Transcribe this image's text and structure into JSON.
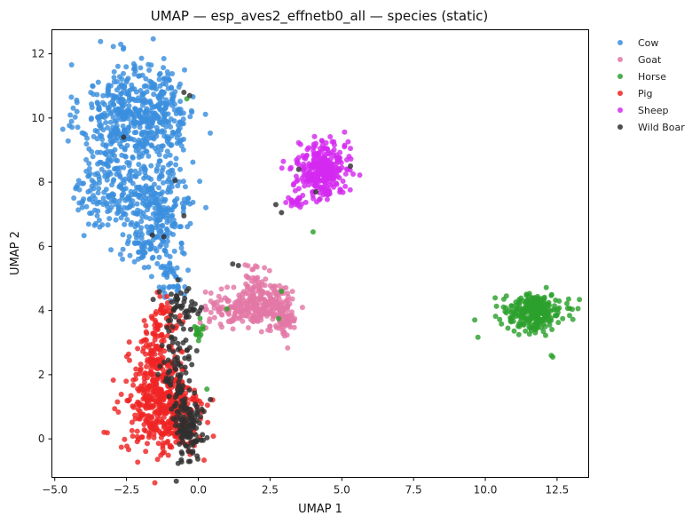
{
  "chart_data": {
    "type": "scatter",
    "title": "UMAP — esp_aves2_effnetb0_all — species (static)",
    "xlabel": "UMAP 1",
    "ylabel": "UMAP 2",
    "xlim": [
      -5.1,
      13.6
    ],
    "ylim": [
      -1.2,
      12.75
    ],
    "xticks": [
      -5.0,
      -2.5,
      0.0,
      2.5,
      5.0,
      7.5,
      10.0,
      12.5
    ],
    "xtick_labels": [
      "−5.0",
      "−2.5",
      "0.0",
      "2.5",
      "5.0",
      "7.5",
      "10.0",
      "12.5"
    ],
    "yticks": [
      0,
      2,
      4,
      6,
      8,
      10,
      12
    ],
    "ytick_labels": [
      "0",
      "2",
      "4",
      "6",
      "8",
      "10",
      "12"
    ],
    "grid": false,
    "legend_position": "outside-right-top",
    "series": [
      {
        "name": "Cow",
        "color": "#3a8fde",
        "clusters": [
          {
            "cx": -2.6,
            "cy": 10.0,
            "sx": 0.75,
            "sy": 0.85,
            "n": 380
          },
          {
            "cx": -1.2,
            "cy": 10.2,
            "sx": 0.55,
            "sy": 0.75,
            "n": 180
          },
          {
            "cx": -2.9,
            "cy": 7.7,
            "sx": 0.7,
            "sy": 0.55,
            "n": 180
          },
          {
            "cx": -1.3,
            "cy": 7.3,
            "sx": 0.6,
            "sy": 0.7,
            "n": 200
          },
          {
            "cx": -1.8,
            "cy": 6.0,
            "sx": 0.45,
            "sy": 0.35,
            "n": 70
          },
          {
            "cx": -1.0,
            "cy": 4.9,
            "sx": 0.25,
            "sy": 0.4,
            "n": 40
          }
        ]
      },
      {
        "name": "Goat",
        "color": "#e377a6",
        "clusters": [
          {
            "cx": 1.8,
            "cy": 4.1,
            "sx": 0.7,
            "sy": 0.28,
            "n": 220
          },
          {
            "cx": 2.6,
            "cy": 4.3,
            "sx": 0.35,
            "sy": 0.3,
            "n": 70
          },
          {
            "cx": 3.0,
            "cy": 3.6,
            "sx": 0.2,
            "sy": 0.25,
            "n": 50
          },
          {
            "cx": 1.9,
            "cy": 4.9,
            "sx": 0.25,
            "sy": 0.3,
            "n": 35
          }
        ]
      },
      {
        "name": "Horse",
        "color": "#2ca02c",
        "clusters": [
          {
            "cx": 11.7,
            "cy": 3.95,
            "sx": 0.5,
            "sy": 0.28,
            "n": 270
          },
          {
            "cx": 0.0,
            "cy": 3.4,
            "sx": 0.1,
            "sy": 0.15,
            "n": 14
          }
        ],
        "points": [
          [
            12.3,
            2.6
          ],
          [
            12.35,
            2.55
          ],
          [
            4.0,
            6.45
          ],
          [
            2.9,
            4.6
          ],
          [
            2.8,
            3.75
          ],
          [
            1.0,
            4.05
          ],
          [
            -0.4,
            10.6
          ],
          [
            0.3,
            1.55
          ]
        ]
      },
      {
        "name": "Pig",
        "color": "#ef2424",
        "clusters": [
          {
            "cx": -1.2,
            "cy": 0.9,
            "sx": 0.65,
            "sy": 0.7,
            "n": 450
          },
          {
            "cx": -1.5,
            "cy": 2.5,
            "sx": 0.4,
            "sy": 0.55,
            "n": 120
          },
          {
            "cx": -1.1,
            "cy": 3.8,
            "sx": 0.25,
            "sy": 0.3,
            "n": 40
          }
        ]
      },
      {
        "name": "Sheep",
        "color": "#d42af0",
        "clusters": [
          {
            "cx": 4.3,
            "cy": 8.4,
            "sx": 0.42,
            "sy": 0.42,
            "n": 330
          },
          {
            "cx": 3.3,
            "cy": 7.4,
            "sx": 0.12,
            "sy": 0.12,
            "n": 18
          }
        ]
      },
      {
        "name": "Wild Boar",
        "color": "#2f2f2f",
        "clusters": [
          {
            "cx": -0.35,
            "cy": 0.3,
            "sx": 0.25,
            "sy": 0.55,
            "n": 110
          },
          {
            "cx": -0.7,
            "cy": 2.3,
            "sx": 0.3,
            "sy": 0.8,
            "n": 90
          },
          {
            "cx": -0.6,
            "cy": 4.2,
            "sx": 0.35,
            "sy": 0.3,
            "n": 40
          }
        ],
        "points": [
          [
            -0.5,
            10.8
          ],
          [
            -0.3,
            10.7
          ],
          [
            -0.8,
            8.05
          ],
          [
            -0.5,
            6.95
          ],
          [
            -1.6,
            6.35
          ],
          [
            -1.2,
            6.3
          ],
          [
            2.7,
            7.3
          ],
          [
            2.9,
            7.05
          ],
          [
            3.5,
            8.4
          ],
          [
            4.1,
            7.7
          ],
          [
            5.3,
            8.5
          ],
          [
            1.2,
            5.45
          ],
          [
            1.4,
            5.4
          ],
          [
            -2.6,
            9.4
          ]
        ]
      }
    ]
  }
}
